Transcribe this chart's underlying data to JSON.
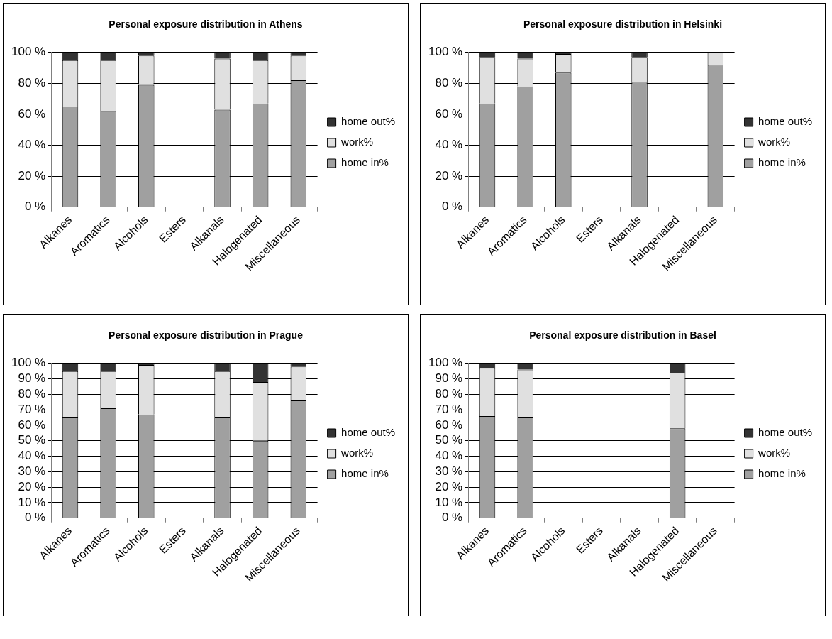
{
  "chart_data": [
    {
      "type": "bar",
      "title": "Personal exposure distribution in Athens",
      "categories": [
        "Alkanes",
        "Aromatics",
        "Alcohols",
        "Esters",
        "Alkanals",
        "Halogenated",
        "Miscellaneous"
      ],
      "stacked": true,
      "legend": "right",
      "grid": "y",
      "ylim": [
        0,
        100
      ],
      "yticks": [
        {
          "value": 0,
          "label": "0 %"
        },
        {
          "value": 20,
          "label": "20 %"
        },
        {
          "value": 40,
          "label": "40 %"
        },
        {
          "value": 60,
          "label": "60 %"
        },
        {
          "value": 80,
          "label": "80 %"
        },
        {
          "value": 100,
          "label": "100 %"
        }
      ],
      "series": [
        {
          "name": "home in%",
          "color": "#a0a0a0",
          "values": [
            65,
            62,
            79,
            null,
            63,
            67,
            82
          ]
        },
        {
          "name": "work%",
          "color": "#e0e0e0",
          "values": [
            30,
            33,
            19,
            null,
            33,
            28,
            16
          ]
        },
        {
          "name": "home out%",
          "color": "#333333",
          "values": [
            5,
            5,
            2,
            null,
            4,
            5,
            2
          ]
        }
      ]
    },
    {
      "type": "bar",
      "title": "Personal exposure distribution in Helsinki",
      "categories": [
        "Alkanes",
        "Aromatics",
        "Alcohols",
        "Esters",
        "Alkanals",
        "Halogenated",
        "Miscellaneous"
      ],
      "stacked": true,
      "legend": "right",
      "grid": "y",
      "ylim": [
        0,
        100
      ],
      "yticks": [
        {
          "value": 0,
          "label": "0 %"
        },
        {
          "value": 20,
          "label": "20 %"
        },
        {
          "value": 40,
          "label": "40 %"
        },
        {
          "value": 60,
          "label": "60 %"
        },
        {
          "value": 80,
          "label": "80 %"
        },
        {
          "value": 100,
          "label": "100 %"
        }
      ],
      "series": [
        {
          "name": "home in%",
          "color": "#a0a0a0",
          "values": [
            67,
            78,
            87,
            null,
            81,
            null,
            92
          ]
        },
        {
          "name": "work%",
          "color": "#e0e0e0",
          "values": [
            30,
            18,
            12,
            null,
            16,
            null,
            8
          ]
        },
        {
          "name": "home out%",
          "color": "#333333",
          "values": [
            3,
            4,
            1,
            null,
            3,
            null,
            0
          ]
        }
      ]
    },
    {
      "type": "bar",
      "title": "Personal exposure distribution in Prague",
      "categories": [
        "Alkanes",
        "Aromatics",
        "Alcohols",
        "Esters",
        "Alkanals",
        "Halogenated",
        "Miscellaneous"
      ],
      "stacked": true,
      "legend": "right",
      "grid": "y",
      "ylim": [
        0,
        100
      ],
      "yticks": [
        {
          "value": 0,
          "label": "0 %"
        },
        {
          "value": 10,
          "label": "10 %"
        },
        {
          "value": 20,
          "label": "20 %"
        },
        {
          "value": 30,
          "label": "30 %"
        },
        {
          "value": 40,
          "label": "40 %"
        },
        {
          "value": 50,
          "label": "50 %"
        },
        {
          "value": 60,
          "label": "60 %"
        },
        {
          "value": 70,
          "label": "70 %"
        },
        {
          "value": 80,
          "label": "80 %"
        },
        {
          "value": 90,
          "label": "90 %"
        },
        {
          "value": 100,
          "label": "100 %"
        }
      ],
      "series": [
        {
          "name": "home in%",
          "color": "#a0a0a0",
          "values": [
            65,
            71,
            67,
            null,
            65,
            50,
            76
          ]
        },
        {
          "name": "work%",
          "color": "#e0e0e0",
          "values": [
            30,
            24,
            32,
            null,
            30,
            38,
            22
          ]
        },
        {
          "name": "home out%",
          "color": "#333333",
          "values": [
            5,
            5,
            1,
            null,
            5,
            12,
            2
          ]
        }
      ]
    },
    {
      "type": "bar",
      "title": "Personal exposure distribution in Basel",
      "categories": [
        "Alkanes",
        "Aromatics",
        "Alcohols",
        "Esters",
        "Alkanals",
        "Halogenated",
        "Miscellaneous"
      ],
      "stacked": true,
      "legend": "right",
      "grid": "y",
      "ylim": [
        0,
        100
      ],
      "yticks": [
        {
          "value": 0,
          "label": "0 %"
        },
        {
          "value": 10,
          "label": "10 %"
        },
        {
          "value": 20,
          "label": "20 %"
        },
        {
          "value": 30,
          "label": "30 %"
        },
        {
          "value": 40,
          "label": "40 %"
        },
        {
          "value": 50,
          "label": "50 %"
        },
        {
          "value": 60,
          "label": "60 %"
        },
        {
          "value": 70,
          "label": "70 %"
        },
        {
          "value": 80,
          "label": "80 %"
        },
        {
          "value": 90,
          "label": "90 %"
        },
        {
          "value": 100,
          "label": "100 %"
        }
      ],
      "series": [
        {
          "name": "home in%",
          "color": "#a0a0a0",
          "values": [
            66,
            65,
            null,
            null,
            null,
            58,
            null
          ]
        },
        {
          "name": "work%",
          "color": "#e0e0e0",
          "values": [
            31,
            31,
            null,
            null,
            null,
            36,
            null
          ]
        },
        {
          "name": "home out%",
          "color": "#333333",
          "values": [
            3,
            4,
            null,
            null,
            null,
            6,
            null
          ]
        }
      ]
    }
  ]
}
